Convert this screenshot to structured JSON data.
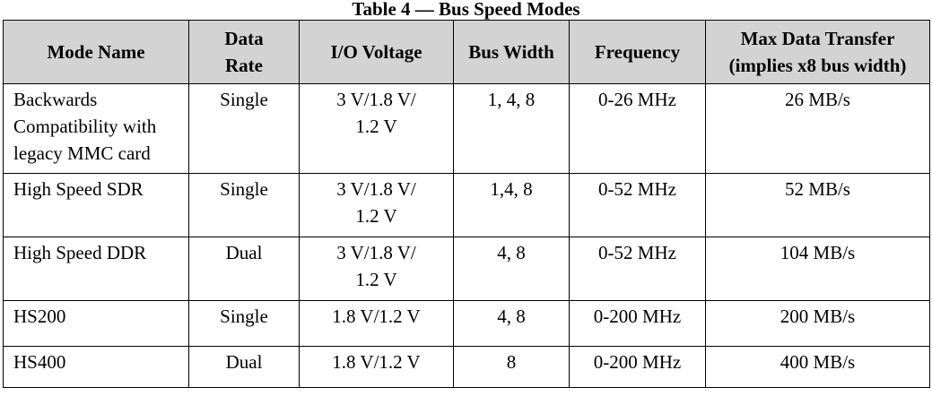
{
  "caption": "Table 4 — Bus Speed Modes",
  "headers": {
    "mode_name": "Mode Name",
    "data_rate": "Data\nRate",
    "io_voltage": "I/O Voltage",
    "bus_width": "Bus Width",
    "frequency": "Frequency",
    "max_transfer": "Max Data Transfer\n(implies x8 bus width)"
  },
  "rows": [
    {
      "mode_name": "Backwards\nCompatibility with\nlegacy MMC card",
      "data_rate": "Single",
      "io_voltage": "3 V/1.8 V/\n1.2 V",
      "bus_width": "1, 4, 8",
      "frequency": "0-26 MHz",
      "max_transfer": "26 MB/s"
    },
    {
      "mode_name": "High Speed SDR",
      "data_rate": "Single",
      "io_voltage": "3 V/1.8 V/\n1.2 V",
      "bus_width": "1,4, 8",
      "frequency": "0-52 MHz",
      "max_transfer": "52 MB/s"
    },
    {
      "mode_name": "High Speed DDR",
      "data_rate": "Dual",
      "io_voltage": "3 V/1.8 V/\n1.2 V",
      "bus_width": "4, 8",
      "frequency": "0-52 MHz",
      "max_transfer": "104 MB/s"
    },
    {
      "mode_name": "HS200",
      "data_rate": "Single",
      "io_voltage": "1.8 V/1.2 V",
      "bus_width": "4, 8",
      "frequency": "0-200 MHz",
      "max_transfer": "200 MB/s"
    },
    {
      "mode_name": "HS400",
      "data_rate": "Dual",
      "io_voltage": "1.8 V/1.2 V",
      "bus_width": "8",
      "frequency": "0-200 MHz",
      "max_transfer": "400 MB/s"
    }
  ]
}
